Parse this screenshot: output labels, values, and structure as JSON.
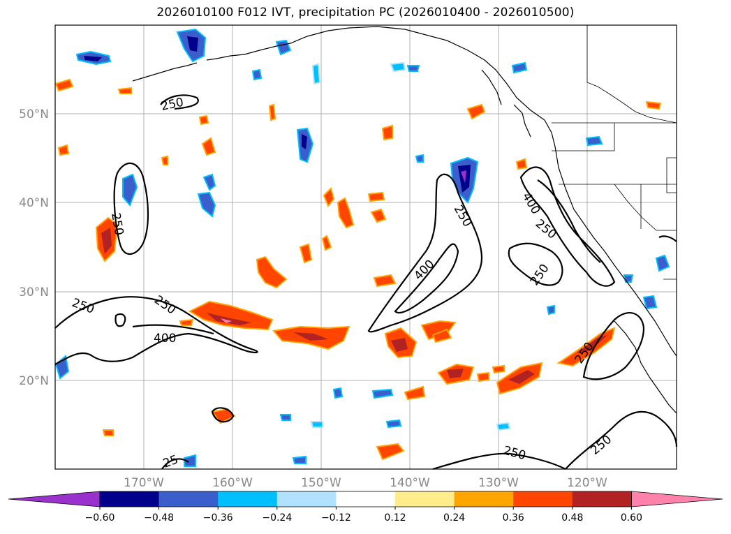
{
  "title": "2026010100 F012 IVT, precipitation PC (2026010400 - 2026010500)",
  "map": {
    "lat_ticks": [
      "50°N",
      "40°N",
      "30°N",
      "20°N"
    ],
    "lon_ticks": [
      "170°W",
      "160°W",
      "150°W",
      "140°W",
      "130°W",
      "120°W"
    ],
    "contour_labels": [
      "250",
      "250",
      "250",
      "400",
      "250",
      "400",
      "250",
      "400",
      "250",
      "250",
      "250",
      "250",
      "250",
      "25"
    ]
  },
  "colorbar": {
    "colors": [
      "#9932cc",
      "#00008b",
      "#3a5fcd",
      "#00bfff",
      "#b0e2ff",
      "#ffffff",
      "#ffec8b",
      "#ffa500",
      "#ff4500",
      "#b22222",
      "#ff82ab"
    ],
    "tick_labels": [
      "−0.60",
      "−0.48",
      "−0.36",
      "−0.24",
      "−0.12",
      "0.12",
      "0.24",
      "0.36",
      "0.48",
      "0.60"
    ]
  }
}
